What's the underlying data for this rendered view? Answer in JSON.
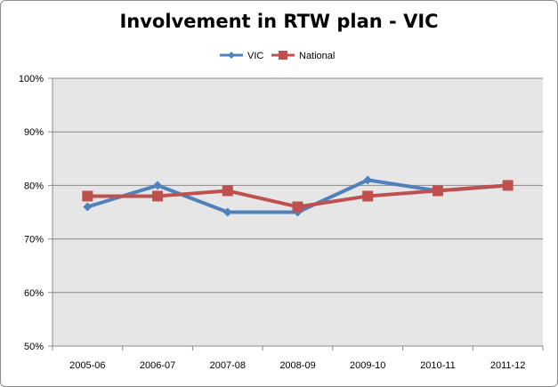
{
  "chart_data": {
    "type": "line",
    "title": "Involvement in RTW plan - VIC",
    "xlabel": "",
    "ylabel": "",
    "categories": [
      "2005-06",
      "2006-07",
      "2007-08",
      "2008-09",
      "2009-10",
      "2010-11",
      "2011-12"
    ],
    "ylim": [
      50,
      100
    ],
    "yticks": [
      50,
      60,
      70,
      80,
      90,
      100
    ],
    "ytick_labels": [
      "50%",
      "60%",
      "70%",
      "80%",
      "90%",
      "100%"
    ],
    "grid": true,
    "legend_position": "top",
    "series": [
      {
        "name": "VIC",
        "values": [
          76,
          80,
          75,
          75,
          81,
          79,
          80
        ],
        "color": "#4f81bd",
        "marker": "diamond"
      },
      {
        "name": "National",
        "values": [
          78,
          78,
          79,
          76,
          78,
          79,
          80
        ],
        "color": "#c0504d",
        "marker": "square"
      }
    ],
    "plot_background": "#e6e6e6"
  }
}
